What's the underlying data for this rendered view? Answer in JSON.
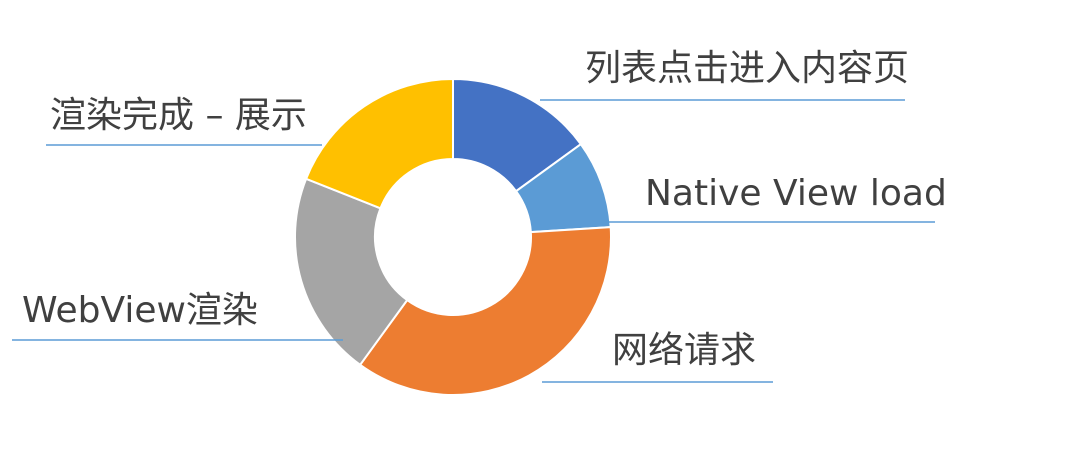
{
  "chart_data": {
    "type": "pie",
    "donut": true,
    "legend": "none",
    "title": "",
    "slices": [
      {
        "label": "列表点击进入内容页",
        "value": 15,
        "color": "#4472c4"
      },
      {
        "label": "Native View load",
        "value": 9,
        "color": "#5b9bd5"
      },
      {
        "label": "网络请求",
        "value": 36,
        "color": "#ed7d31"
      },
      {
        "label": "WebView渲染",
        "value": 21,
        "color": "#a5a5a5"
      },
      {
        "label": "渲染完成 – 展示",
        "value": 19,
        "color": "#ffc000"
      }
    ],
    "leader_line_color": "#5b9bd5",
    "label_color": "#404040"
  }
}
